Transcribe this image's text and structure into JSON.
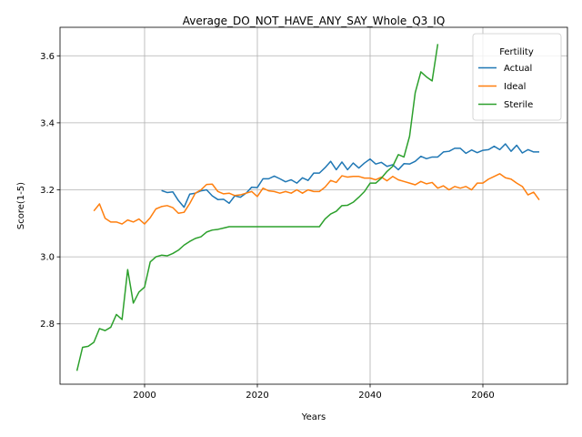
{
  "chart_data": {
    "type": "line",
    "title": "Average_DO_NOT_HAVE_ANY_SAY_Whole_Q3_IQ",
    "xlabel": "Years",
    "ylabel": "Score(1-5)",
    "xlim": [
      1985,
      2075
    ],
    "ylim": [
      2.62,
      3.685
    ],
    "xticks": [
      2000,
      2020,
      2040,
      2060
    ],
    "xtick_labels": [
      "2000",
      "2020",
      "2040",
      "2060"
    ],
    "yticks": [
      2.8,
      3.0,
      3.2,
      3.4,
      3.6
    ],
    "ytick_labels": [
      "2.8",
      "3.0",
      "3.2",
      "3.4",
      "3.6"
    ],
    "grid": true,
    "legend": {
      "title": "Fertility",
      "position": "upper right"
    },
    "series": [
      {
        "name": "Actual",
        "color": "#1f77b4",
        "x": [
          2003,
          2004,
          2005,
          2006,
          2007,
          2008,
          2009,
          2010,
          2011,
          2012,
          2013,
          2014,
          2015,
          2016,
          2017,
          2018,
          2019,
          2020,
          2021,
          2022,
          2023,
          2024,
          2025,
          2026,
          2027,
          2028,
          2029,
          2030,
          2031,
          2032,
          2033,
          2034,
          2035,
          2036,
          2037,
          2038,
          2039,
          2040,
          2041,
          2042,
          2043,
          2044,
          2045,
          2046,
          2047,
          2048,
          2049,
          2050,
          2051,
          2052,
          2053,
          2054,
          2055,
          2056,
          2057,
          2058,
          2059,
          2060,
          2061,
          2062,
          2063,
          2064,
          2065,
          2066,
          2067,
          2068,
          2069,
          2070
        ],
        "y": [
          3.198,
          3.192,
          3.194,
          3.168,
          3.148,
          3.187,
          3.19,
          3.197,
          3.2,
          3.182,
          3.171,
          3.172,
          3.16,
          3.182,
          3.178,
          3.19,
          3.208,
          3.207,
          3.233,
          3.233,
          3.241,
          3.233,
          3.224,
          3.23,
          3.22,
          3.236,
          3.228,
          3.25,
          3.25,
          3.266,
          3.285,
          3.26,
          3.283,
          3.26,
          3.28,
          3.265,
          3.28,
          3.292,
          3.277,
          3.282,
          3.27,
          3.275,
          3.26,
          3.278,
          3.277,
          3.285,
          3.3,
          3.293,
          3.298,
          3.298,
          3.313,
          3.315,
          3.324,
          3.324,
          3.309,
          3.319,
          3.311,
          3.318,
          3.32,
          3.33,
          3.32,
          3.337,
          3.315,
          3.333,
          3.31,
          3.32,
          3.313,
          3.313
        ]
      },
      {
        "name": "Ideal",
        "color": "#ff7f0e",
        "x": [
          1991,
          1992,
          1993,
          1994,
          1995,
          1996,
          1997,
          1998,
          1999,
          2000,
          2001,
          2002,
          2003,
          2004,
          2005,
          2006,
          2007,
          2008,
          2009,
          2010,
          2011,
          2012,
          2013,
          2014,
          2015,
          2016,
          2017,
          2018,
          2019,
          2020,
          2021,
          2022,
          2023,
          2024,
          2025,
          2026,
          2027,
          2028,
          2029,
          2030,
          2031,
          2032,
          2033,
          2034,
          2035,
          2036,
          2037,
          2038,
          2039,
          2040,
          2041,
          2042,
          2043,
          2044,
          2045,
          2046,
          2047,
          2048,
          2049,
          2050,
          2051,
          2052,
          2053,
          2054,
          2055,
          2056,
          2057,
          2058,
          2059,
          2060,
          2061,
          2062,
          2063,
          2064,
          2065,
          2066,
          2067,
          2068,
          2069,
          2070
        ],
        "y": [
          3.137,
          3.158,
          3.115,
          3.104,
          3.104,
          3.098,
          3.11,
          3.104,
          3.113,
          3.098,
          3.117,
          3.143,
          3.15,
          3.153,
          3.147,
          3.13,
          3.133,
          3.159,
          3.19,
          3.2,
          3.216,
          3.217,
          3.195,
          3.188,
          3.19,
          3.183,
          3.185,
          3.19,
          3.195,
          3.18,
          3.205,
          3.197,
          3.195,
          3.19,
          3.195,
          3.19,
          3.2,
          3.19,
          3.2,
          3.195,
          3.195,
          3.208,
          3.228,
          3.222,
          3.242,
          3.238,
          3.24,
          3.24,
          3.235,
          3.235,
          3.23,
          3.238,
          3.227,
          3.24,
          3.23,
          3.225,
          3.22,
          3.215,
          3.225,
          3.218,
          3.222,
          3.205,
          3.212,
          3.2,
          3.21,
          3.205,
          3.21,
          3.2,
          3.22,
          3.22,
          3.232,
          3.24,
          3.248,
          3.236,
          3.232,
          3.22,
          3.21,
          3.185,
          3.193,
          3.17
        ]
      },
      {
        "name": "Sterile",
        "color": "#2ca02c",
        "x": [
          1988,
          1989,
          1990,
          1991,
          1992,
          1993,
          1994,
          1995,
          1996,
          1997,
          1998,
          1999,
          2000,
          2001,
          2002,
          2003,
          2004,
          2005,
          2006,
          2007,
          2008,
          2009,
          2010,
          2011,
          2012,
          2013,
          2014,
          2015,
          2016,
          2017,
          2018,
          2019,
          2020,
          2021,
          2022,
          2023,
          2024,
          2025,
          2026,
          2027,
          2028,
          2029,
          2030,
          2031,
          2032,
          2033,
          2034,
          2035,
          2036,
          2037,
          2038,
          2039,
          2040,
          2041,
          2042,
          2043,
          2044,
          2045,
          2046,
          2047,
          2048,
          2049,
          2050,
          2051,
          2052
        ],
        "y": [
          2.66,
          2.73,
          2.733,
          2.745,
          2.786,
          2.78,
          2.79,
          2.828,
          2.813,
          2.962,
          2.862,
          2.895,
          2.91,
          2.985,
          3.0,
          3.005,
          3.003,
          3.01,
          3.02,
          3.035,
          3.046,
          3.055,
          3.06,
          3.074,
          3.08,
          3.082,
          3.086,
          3.09,
          3.09,
          3.09,
          3.09,
          3.09,
          3.09,
          3.09,
          3.09,
          3.09,
          3.09,
          3.09,
          3.09,
          3.09,
          3.09,
          3.09,
          3.09,
          3.09,
          3.113,
          3.128,
          3.136,
          3.153,
          3.154,
          3.163,
          3.178,
          3.195,
          3.22,
          3.22,
          3.235,
          3.255,
          3.27,
          3.305,
          3.298,
          3.36,
          3.49,
          3.552,
          3.537,
          3.525,
          3.635
        ]
      }
    ]
  }
}
